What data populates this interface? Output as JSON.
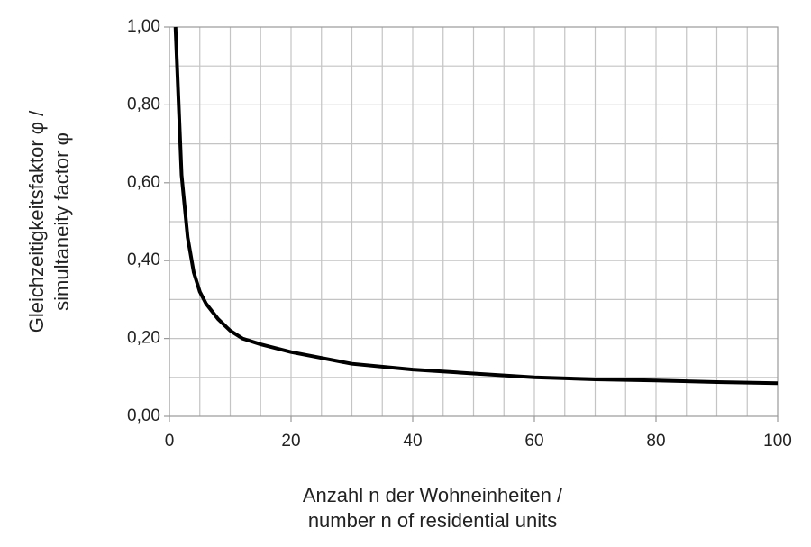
{
  "chart_data": {
    "type": "line",
    "ylabel": [
      "Gleichzeitigkeitsfaktor φ /",
      "simultaneity factor φ"
    ],
    "xlabel": [
      "Anzahl n der Wohneinheiten /",
      "number n of residential units"
    ],
    "x": [
      1,
      2,
      3,
      4,
      5,
      6,
      8,
      10,
      12,
      15,
      20,
      25,
      30,
      40,
      50,
      60,
      70,
      80,
      90,
      100
    ],
    "series": [
      {
        "color": "#000000",
        "values": [
          1.0,
          0.62,
          0.46,
          0.37,
          0.32,
          0.29,
          0.25,
          0.22,
          0.2,
          0.185,
          0.165,
          0.15,
          0.135,
          0.12,
          0.11,
          0.1,
          0.095,
          0.092,
          0.088,
          0.085
        ]
      }
    ],
    "xlim": [
      0,
      100
    ],
    "xticks": [
      0,
      20,
      40,
      60,
      80,
      100
    ],
    "ylim": [
      0,
      1
    ],
    "yticks": [
      {
        "value": 0,
        "label": "0,00"
      },
      {
        "value": 0.2,
        "label": "0,20"
      },
      {
        "value": 0.4,
        "label": "0,40"
      },
      {
        "value": 0.6,
        "label": "0,60"
      },
      {
        "value": 0.8,
        "label": "0,80"
      },
      {
        "value": 1,
        "label": "1,00"
      }
    ],
    "x_gridlines": [
      5,
      10,
      15,
      20,
      25,
      30,
      35,
      40,
      45,
      50,
      55,
      60,
      65,
      70,
      75,
      80,
      85,
      90,
      95
    ],
    "y_gridlines": [
      0.1,
      0.2,
      0.3,
      0.4,
      0.5,
      0.6,
      0.7,
      0.8,
      0.9
    ],
    "grid": true
  }
}
